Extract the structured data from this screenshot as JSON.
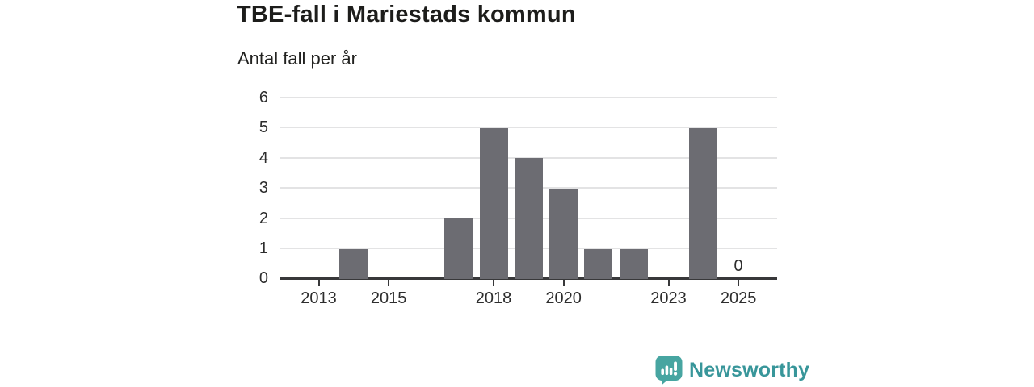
{
  "header": {
    "title": "TBE-fall i Mariestads kommun",
    "subtitle": "Antal fall per år"
  },
  "chart_data": {
    "type": "bar",
    "title": "TBE-fall i Mariestads kommun",
    "subtitle": "Antal fall per år",
    "ylabel": "Antal fall per år",
    "xlabel": "",
    "categories": [
      2013,
      2014,
      2015,
      2016,
      2017,
      2018,
      2019,
      2020,
      2021,
      2022,
      2023,
      2024,
      2025
    ],
    "values": [
      0,
      1,
      0,
      0,
      2,
      5,
      4,
      3,
      1,
      1,
      0,
      5,
      0
    ],
    "ylim": [
      0,
      6
    ],
    "yticks": [
      0,
      1,
      2,
      3,
      4,
      5,
      6
    ],
    "xtick_labels": [
      2013,
      2015,
      2018,
      2020,
      2023,
      2025
    ],
    "grid": "horizontal",
    "legend": "none",
    "bar_color": "#6c6c72",
    "annotations": [
      {
        "category": 2025,
        "value": 0,
        "text": "0"
      }
    ]
  },
  "footer": {
    "brand": "Newsworthy",
    "brand_color": "#38969a",
    "icon_color": "#47a5a1",
    "icon": "newsworthy-speech-bubble-chart-icon"
  }
}
